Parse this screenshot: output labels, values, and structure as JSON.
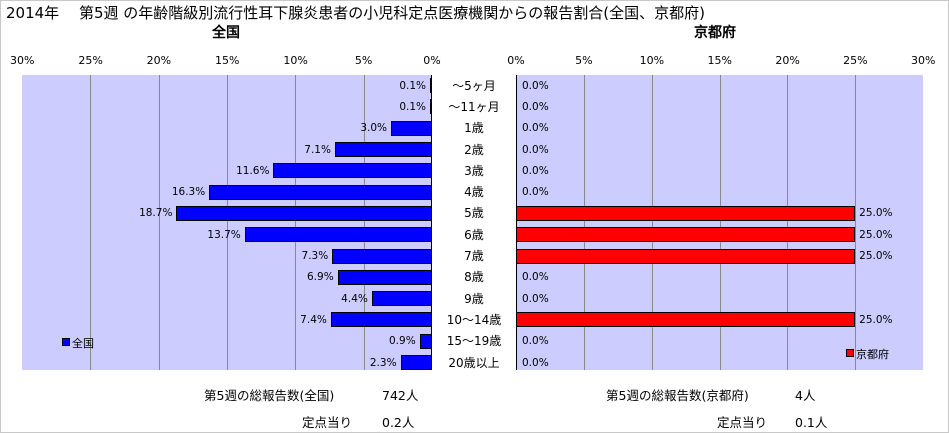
{
  "title": "2014年　 第5週 の年齢階級別流行性耳下腺炎患者の小児科定点医療機関からの報告割合(全国、京都府)",
  "colors": {
    "nation_bar": "#0000ff",
    "kyoto_bar": "#ff0000",
    "plot_bg": "#ccccff"
  },
  "chart_data": [
    {
      "type": "bar",
      "orientation": "horizontal",
      "direction": "right-to-left",
      "title": "全国",
      "categories": [
        "〜5ヶ月",
        "〜11ヶ月",
        "1歳",
        "2歳",
        "3歳",
        "4歳",
        "5歳",
        "6歳",
        "7歳",
        "8歳",
        "9歳",
        "10〜14歳",
        "15〜19歳",
        "20歳以上"
      ],
      "series": [
        {
          "name": "全国",
          "values": [
            0.1,
            0.1,
            3.0,
            7.1,
            11.6,
            16.3,
            18.7,
            13.7,
            7.3,
            6.9,
            4.4,
            7.4,
            0.9,
            2.3
          ],
          "labels": [
            "0.1%",
            "0.1%",
            "3.0%",
            "7.1%",
            "11.6%",
            "16.3%",
            "18.7%",
            "13.7%",
            "7.3%",
            "6.9%",
            "4.4%",
            "7.4%",
            "0.9%",
            "2.3%"
          ]
        }
      ],
      "xlim": [
        0,
        30
      ],
      "xticks": [
        "30%",
        "25%",
        "20%",
        "15%",
        "10%",
        "5%",
        "0%"
      ],
      "grid": true,
      "legend_position": "bottom-left"
    },
    {
      "type": "bar",
      "orientation": "horizontal",
      "direction": "left-to-right",
      "title": "京都府",
      "categories": [
        "〜5ヶ月",
        "〜11ヶ月",
        "1歳",
        "2歳",
        "3歳",
        "4歳",
        "5歳",
        "6歳",
        "7歳",
        "8歳",
        "9歳",
        "10〜14歳",
        "15〜19歳",
        "20歳以上"
      ],
      "series": [
        {
          "name": "京都府",
          "values": [
            0,
            0,
            0,
            0,
            0,
            0,
            25.0,
            25.0,
            25.0,
            0,
            0,
            25.0,
            0,
            0
          ],
          "labels": [
            "0.0%",
            "0.0%",
            "0.0%",
            "0.0%",
            "0.0%",
            "0.0%",
            "25.0%",
            "25.0%",
            "25.0%",
            "0.0%",
            "0.0%",
            "25.0%",
            "0.0%",
            "0.0%"
          ]
        }
      ],
      "xlim": [
        0,
        30
      ],
      "xticks": [
        "0%",
        "5%",
        "10%",
        "15%",
        "20%",
        "25%",
        "30%"
      ],
      "grid": true,
      "legend_position": "bottom-right"
    }
  ],
  "footer": {
    "nation_total_label": "第5週の総報告数(全国)",
    "nation_total_value": "742人",
    "nation_per_site_label": "定点当り",
    "nation_per_site_value": "0.2人",
    "kyoto_total_label": "第5週の総報告数(京都府)",
    "kyoto_total_value": "4人",
    "kyoto_per_site_label": "定点当り",
    "kyoto_per_site_value": "0.1人"
  }
}
